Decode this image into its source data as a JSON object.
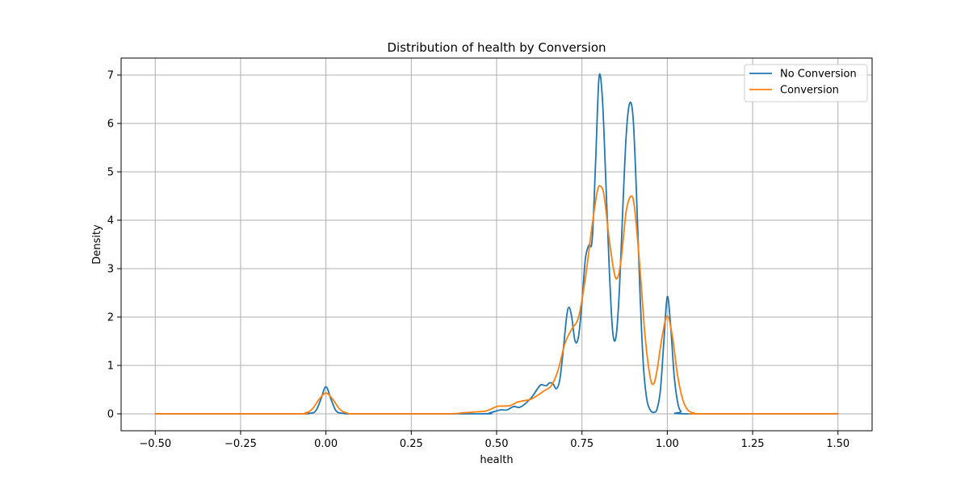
{
  "chart_data": {
    "type": "line",
    "title": "Distribution of health by Conversion",
    "xlabel": "health",
    "ylabel": "Density",
    "xlim": [
      -0.6,
      1.6
    ],
    "ylim": [
      -0.35,
      7.35
    ],
    "xticks": [
      -0.5,
      -0.25,
      0.0,
      0.25,
      0.5,
      0.75,
      1.0,
      1.25,
      1.5
    ],
    "xtick_labels": [
      "−0.50",
      "−0.25",
      "0.00",
      "0.25",
      "0.50",
      "0.75",
      "1.00",
      "1.25",
      "1.50"
    ],
    "yticks": [
      0,
      1,
      2,
      3,
      4,
      5,
      6,
      7
    ],
    "ytick_labels": [
      "0",
      "1",
      "2",
      "3",
      "4",
      "5",
      "6",
      "7"
    ],
    "grid": true,
    "legend_position": "top-right",
    "series": [
      {
        "name": "No Conversion",
        "color": "#1f77b4",
        "points": [
          [
            -0.5,
            0
          ],
          [
            -0.1,
            0
          ],
          [
            -0.05,
            0.01
          ],
          [
            -0.03,
            0.06
          ],
          [
            -0.015,
            0.3
          ],
          [
            0.0,
            0.56
          ],
          [
            0.015,
            0.3
          ],
          [
            0.03,
            0.06
          ],
          [
            0.05,
            0.01
          ],
          [
            0.1,
            0
          ],
          [
            0.45,
            0
          ],
          [
            0.48,
            0.02
          ],
          [
            0.51,
            0.08
          ],
          [
            0.53,
            0.08
          ],
          [
            0.55,
            0.15
          ],
          [
            0.57,
            0.14
          ],
          [
            0.6,
            0.32
          ],
          [
            0.62,
            0.52
          ],
          [
            0.63,
            0.6
          ],
          [
            0.645,
            0.58
          ],
          [
            0.655,
            0.64
          ],
          [
            0.665,
            0.62
          ],
          [
            0.675,
            0.52
          ],
          [
            0.685,
            0.7
          ],
          [
            0.695,
            1.3
          ],
          [
            0.705,
            2.0
          ],
          [
            0.712,
            2.2
          ],
          [
            0.72,
            2.0
          ],
          [
            0.73,
            1.5
          ],
          [
            0.74,
            1.6
          ],
          [
            0.75,
            2.3
          ],
          [
            0.76,
            3.2
          ],
          [
            0.77,
            3.48
          ],
          [
            0.78,
            3.6
          ],
          [
            0.79,
            5.2
          ],
          [
            0.8,
            6.95
          ],
          [
            0.81,
            6.5
          ],
          [
            0.82,
            4.8
          ],
          [
            0.83,
            3.0
          ],
          [
            0.84,
            1.7
          ],
          [
            0.85,
            1.6
          ],
          [
            0.86,
            2.6
          ],
          [
            0.87,
            4.3
          ],
          [
            0.88,
            5.8
          ],
          [
            0.89,
            6.42
          ],
          [
            0.9,
            6.1
          ],
          [
            0.91,
            4.5
          ],
          [
            0.92,
            2.5
          ],
          [
            0.93,
            1.0
          ],
          [
            0.94,
            0.3
          ],
          [
            0.95,
            0.08
          ],
          [
            0.96,
            0.03
          ],
          [
            0.97,
            0.1
          ],
          [
            0.98,
            0.5
          ],
          [
            0.99,
            1.5
          ],
          [
            1.0,
            2.42
          ],
          [
            1.01,
            1.8
          ],
          [
            1.02,
            0.8
          ],
          [
            1.03,
            0.25
          ],
          [
            1.04,
            0.05
          ],
          [
            1.06,
            0.0
          ],
          [
            1.5,
            0.0
          ]
        ]
      },
      {
        "name": "Conversion",
        "color": "#ff7f0e",
        "points": [
          [
            -0.5,
            0
          ],
          [
            -0.1,
            0
          ],
          [
            -0.06,
            0.02
          ],
          [
            -0.04,
            0.1
          ],
          [
            -0.02,
            0.3
          ],
          [
            0.0,
            0.43
          ],
          [
            0.02,
            0.3
          ],
          [
            0.04,
            0.1
          ],
          [
            0.06,
            0.02
          ],
          [
            0.1,
            0
          ],
          [
            0.35,
            0
          ],
          [
            0.4,
            0.02
          ],
          [
            0.44,
            0.04
          ],
          [
            0.47,
            0.06
          ],
          [
            0.5,
            0.15
          ],
          [
            0.52,
            0.16
          ],
          [
            0.54,
            0.17
          ],
          [
            0.56,
            0.24
          ],
          [
            0.58,
            0.27
          ],
          [
            0.6,
            0.3
          ],
          [
            0.62,
            0.38
          ],
          [
            0.64,
            0.48
          ],
          [
            0.66,
            0.58
          ],
          [
            0.68,
            0.9
          ],
          [
            0.7,
            1.45
          ],
          [
            0.72,
            1.75
          ],
          [
            0.74,
            2.0
          ],
          [
            0.76,
            2.8
          ],
          [
            0.78,
            3.9
          ],
          [
            0.795,
            4.6
          ],
          [
            0.805,
            4.7
          ],
          [
            0.815,
            4.5
          ],
          [
            0.83,
            3.6
          ],
          [
            0.845,
            2.9
          ],
          [
            0.855,
            2.82
          ],
          [
            0.865,
            3.2
          ],
          [
            0.88,
            4.2
          ],
          [
            0.895,
            4.5
          ],
          [
            0.905,
            4.2
          ],
          [
            0.92,
            3.0
          ],
          [
            0.935,
            1.6
          ],
          [
            0.95,
            0.75
          ],
          [
            0.96,
            0.62
          ],
          [
            0.97,
            0.9
          ],
          [
            0.985,
            1.6
          ],
          [
            1.0,
            2.02
          ],
          [
            1.015,
            1.6
          ],
          [
            1.03,
            0.8
          ],
          [
            1.045,
            0.3
          ],
          [
            1.06,
            0.08
          ],
          [
            1.08,
            0.01
          ],
          [
            1.1,
            0
          ],
          [
            1.5,
            0
          ]
        ]
      }
    ]
  }
}
